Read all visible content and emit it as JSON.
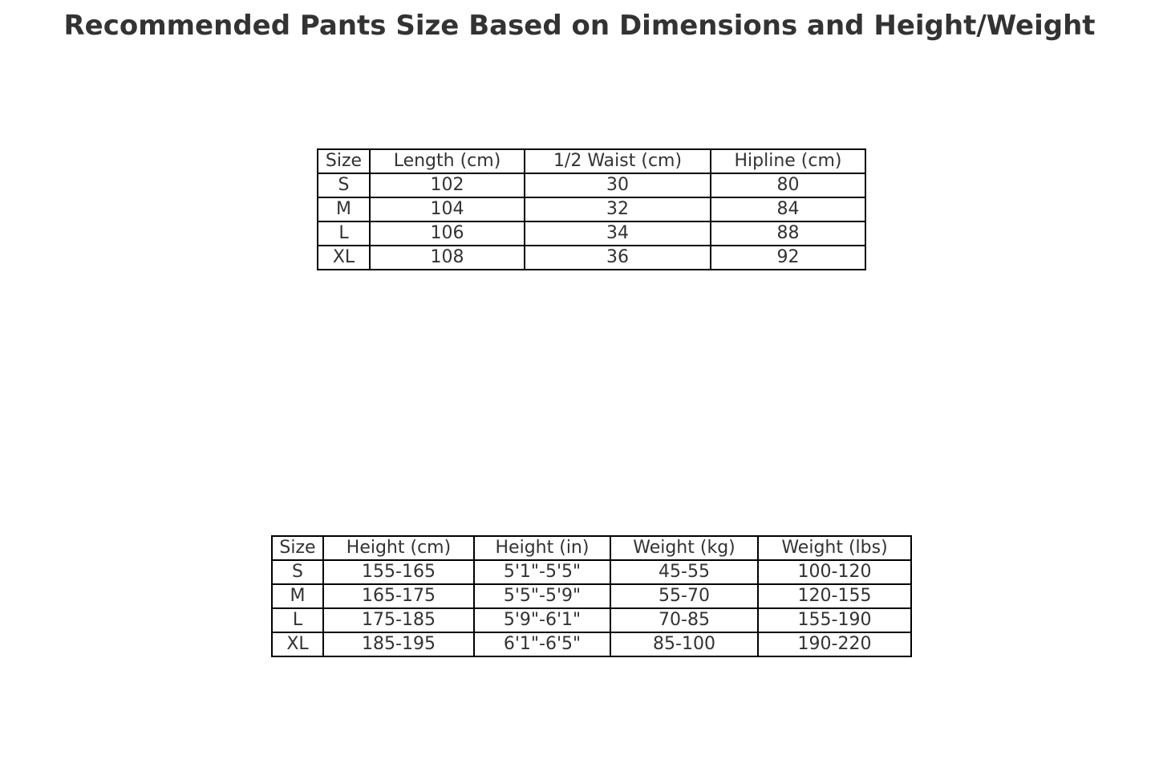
{
  "title": "Recommended Pants Size Based on Dimensions and Height/Weight",
  "chart_data": [
    {
      "type": "table",
      "columns": [
        "Size",
        "Length (cm)",
        "1/2 Waist (cm)",
        "Hipline (cm)"
      ],
      "rows": [
        [
          "S",
          "102",
          "30",
          "80"
        ],
        [
          "M",
          "104",
          "32",
          "84"
        ],
        [
          "L",
          "106",
          "34",
          "88"
        ],
        [
          "XL",
          "108",
          "36",
          "92"
        ]
      ]
    },
    {
      "type": "table",
      "columns": [
        "Size",
        "Height (cm)",
        "Height (in)",
        "Weight (kg)",
        "Weight (lbs)"
      ],
      "rows": [
        [
          "S",
          "155-165",
          "5'1\"-5'5\"",
          "45-55",
          "100-120"
        ],
        [
          "M",
          "165-175",
          "5'5\"-5'9\"",
          "55-70",
          "120-155"
        ],
        [
          "L",
          "175-185",
          "5'9\"-6'1\"",
          "70-85",
          "155-190"
        ],
        [
          "XL",
          "185-195",
          "6'1\"-6'5\"",
          "85-100",
          "190-220"
        ]
      ]
    }
  ]
}
